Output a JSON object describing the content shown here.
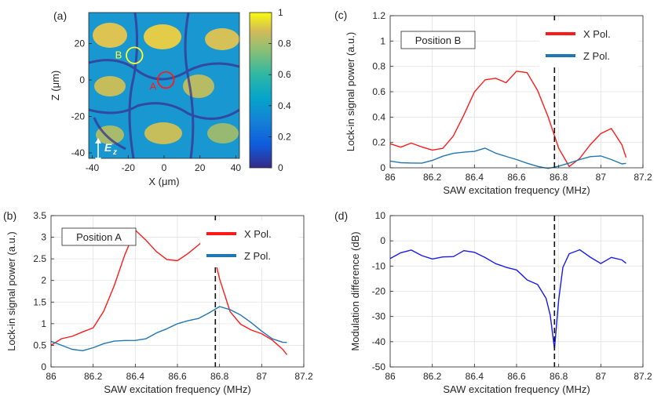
{
  "colors": {
    "x_series": "#ff1a1a",
    "z_series": "#1f77b4",
    "diff_series": "#1a1aee",
    "circle_a": "#ff1a1a",
    "circle_b": "#ffff33",
    "annot_b": "#ffff33",
    "annot_a": "#ff1a1a"
  },
  "chart_data": [
    {
      "id": "a",
      "type": "heatmap",
      "panel_label": "(a)",
      "xlabel": "X (μm)",
      "ylabel": "Z (μm)",
      "xlim": [
        -42,
        42
      ],
      "ylim": [
        -43,
        37
      ],
      "xticks": [
        -40,
        -20,
        0,
        20,
        40
      ],
      "yticks": [
        -40,
        -20,
        0,
        20
      ],
      "colorbar": {
        "range": [
          0,
          1
        ],
        "ticks": [
          0,
          0.2,
          0.4,
          0.6,
          0.8,
          1
        ]
      },
      "annotations": [
        {
          "label": "A",
          "cx": 1,
          "cz": 0,
          "r": 4.5,
          "color_key": "circle_a"
        },
        {
          "label": "B",
          "cx": -16.5,
          "cz": 13.5,
          "r": 4.5,
          "color_key": "circle_b"
        }
      ],
      "field_label": "E",
      "field_subscript": "z"
    },
    {
      "id": "c",
      "type": "line",
      "panel_label": "(c)",
      "box_label": "Position B",
      "xlabel": "SAW excitation frequency (MHz)",
      "ylabel": "Lock-in signal power (a.u.)",
      "xlim": [
        86,
        87.2
      ],
      "ylim": [
        0,
        1.2
      ],
      "xticks": [
        86,
        86.2,
        86.4,
        86.6,
        86.8,
        87,
        87.2
      ],
      "yticks": [
        0,
        0.2,
        0.4,
        0.6,
        0.8,
        1,
        1.2
      ],
      "vline": 86.78,
      "legend": "top-right",
      "series": [
        {
          "name": "X Pol.",
          "color_key": "x_series",
          "x": [
            86.0,
            86.05,
            86.1,
            86.15,
            86.2,
            86.25,
            86.3,
            86.35,
            86.4,
            86.45,
            86.5,
            86.55,
            86.6,
            86.65,
            86.7,
            86.75,
            86.8,
            86.85,
            86.9,
            86.95,
            87.0,
            87.05,
            87.1,
            87.12
          ],
          "values": [
            0.19,
            0.12,
            0.15,
            0.16,
            0.18,
            0.2,
            0.26,
            0.38,
            0.55,
            0.68,
            0.74,
            0.72,
            0.78,
            0.72,
            0.56,
            0.38,
            0.18,
            0.06,
            0.1,
            0.16,
            0.22,
            0.28,
            0.2,
            0.13
          ]
        },
        {
          "name": "Z Pol.",
          "color_key": "z_series",
          "x": [
            86.0,
            86.05,
            86.1,
            86.15,
            86.2,
            86.25,
            86.3,
            86.35,
            86.4,
            86.45,
            86.5,
            86.55,
            86.6,
            86.65,
            86.7,
            86.75,
            86.8,
            86.85,
            86.9,
            86.95,
            87.0,
            87.05,
            87.1,
            87.12
          ],
          "values": [
            0.04,
            0.04,
            0.05,
            0.05,
            0.06,
            0.08,
            0.1,
            0.12,
            0.14,
            0.17,
            0.12,
            0.08,
            0.05,
            0.03,
            0.02,
            0.01,
            0.02,
            0.03,
            0.05,
            0.08,
            0.1,
            0.08,
            0.04,
            0.03
          ]
        }
      ]
    },
    {
      "id": "b",
      "type": "line",
      "panel_label": "(b)",
      "box_label": "Position A",
      "xlabel": "SAW excitation frequency (MHz)",
      "ylabel": "Lock-in signal power (a.u.)",
      "xlim": [
        86,
        87.2
      ],
      "ylim": [
        0,
        3.5
      ],
      "xticks": [
        86,
        86.2,
        86.4,
        86.6,
        86.8,
        87,
        87.2
      ],
      "yticks": [
        0,
        0.5,
        1,
        1.5,
        2,
        2.5,
        3,
        3.5
      ],
      "vline": 86.78,
      "legend": "top-right",
      "series": [
        {
          "name": "X Pol.",
          "color_key": "x_series",
          "x": [
            86.0,
            86.05,
            86.1,
            86.15,
            86.2,
            86.25,
            86.3,
            86.35,
            86.4,
            86.45,
            86.5,
            86.55,
            86.6,
            86.65,
            86.7,
            86.75,
            86.8,
            86.85,
            86.9,
            86.95,
            87.0,
            87.05,
            87.1,
            87.12
          ],
          "values": [
            0.5,
            0.55,
            0.6,
            0.8,
            1.0,
            1.4,
            1.9,
            2.5,
            3.05,
            2.9,
            2.75,
            2.6,
            2.5,
            2.55,
            2.7,
            3.0,
            2.1,
            1.4,
            1.05,
            0.8,
            0.65,
            0.55,
            0.45,
            0.4
          ]
        },
        {
          "name": "Z Pol.",
          "color_key": "z_series",
          "x": [
            86.0,
            86.05,
            86.1,
            86.15,
            86.2,
            86.25,
            86.3,
            86.35,
            86.4,
            86.45,
            86.5,
            86.55,
            86.6,
            86.65,
            86.7,
            86.75,
            86.8,
            86.85,
            86.9,
            86.95,
            87.0,
            87.05,
            87.1,
            87.12
          ],
          "values": [
            0.55,
            0.5,
            0.45,
            0.42,
            0.45,
            0.5,
            0.55,
            0.6,
            0.65,
            0.7,
            0.8,
            0.85,
            0.95,
            1.05,
            1.15,
            1.3,
            1.42,
            1.3,
            1.15,
            1.0,
            0.85,
            0.7,
            0.6,
            0.55
          ]
        }
      ]
    },
    {
      "id": "d",
      "type": "line",
      "panel_label": "(d)",
      "xlabel": "SAW excitation frequency (MHz)",
      "ylabel": "Modulation difference (dB)",
      "xlim": [
        86,
        87.2
      ],
      "ylim": [
        -50,
        10
      ],
      "xticks": [
        86,
        86.2,
        86.4,
        86.6,
        86.8,
        87,
        87.2
      ],
      "yticks": [
        -50,
        -40,
        -30,
        -20,
        -10,
        0,
        10
      ],
      "vline": 86.78,
      "series": [
        {
          "name": "Modulation difference",
          "color_key": "diff_series",
          "x": [
            86.0,
            86.05,
            86.1,
            86.15,
            86.2,
            86.25,
            86.3,
            86.35,
            86.4,
            86.45,
            86.5,
            86.55,
            86.6,
            86.62,
            86.65,
            86.7,
            86.74,
            86.76,
            86.78,
            86.8,
            86.82,
            86.85,
            86.9,
            86.95,
            87.0,
            87.05,
            87.1,
            87.12
          ],
          "values": [
            -7,
            -6,
            -5,
            -6,
            -6,
            -5,
            -6,
            -5,
            -6,
            -7,
            -8,
            -9,
            -11,
            -14,
            -17,
            -18,
            -22,
            -28,
            -42,
            -24,
            -12,
            -6,
            -3,
            -5,
            -8,
            -7,
            -9,
            -10
          ]
        }
      ]
    }
  ]
}
